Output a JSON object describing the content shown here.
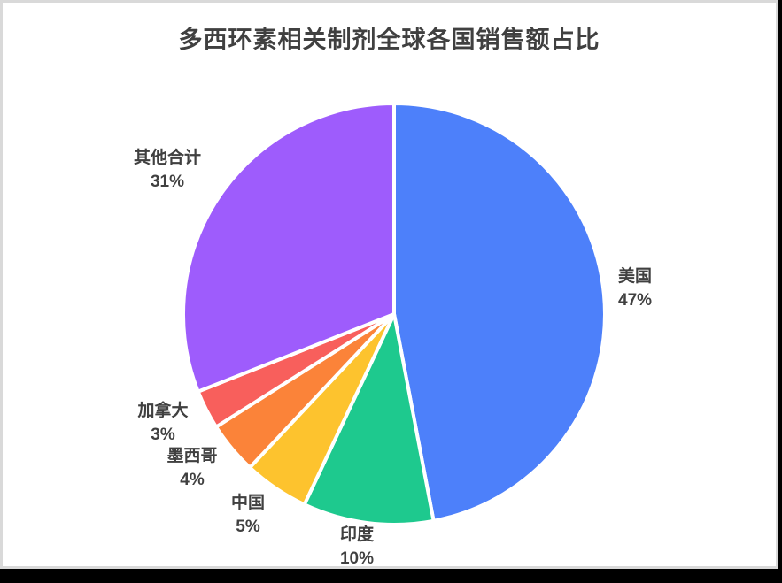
{
  "page": {
    "background_color": "#000000",
    "canvas_background": "#ffffff",
    "canvas_border_color": "#d9d9d9"
  },
  "chart_data": {
    "type": "pie",
    "title": "多西环素相关制剂全球各国销售额占比",
    "title_color": "#404040",
    "label_color": "#404040",
    "slice_border_color": "#ffffff",
    "legend": "none",
    "start_angle": "top",
    "direction": "clockwise",
    "series": [
      {
        "label": "美国",
        "value": 47,
        "percent_label": "47%",
        "color": "#4d80fa"
      },
      {
        "label": "印度",
        "value": 10,
        "percent_label": "10%",
        "color": "#1ec98e"
      },
      {
        "label": "中国",
        "value": 5,
        "percent_label": "5%",
        "color": "#fdc32e"
      },
      {
        "label": "墨西哥",
        "value": 4,
        "percent_label": "4%",
        "color": "#fb8339"
      },
      {
        "label": "加拿大",
        "value": 3,
        "percent_label": "3%",
        "color": "#f85f5c"
      },
      {
        "label": "其他合计",
        "value": 31,
        "percent_label": "31%",
        "color": "#9e5cfc"
      }
    ]
  }
}
